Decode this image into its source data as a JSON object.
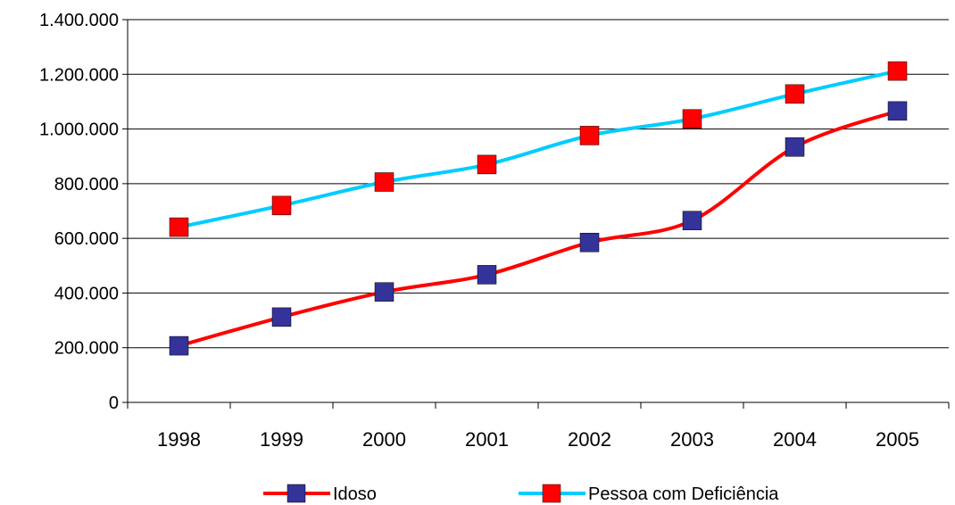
{
  "chart_data": {
    "type": "line",
    "categories": [
      "1998",
      "1999",
      "2000",
      "2001",
      "2002",
      "2003",
      "2004",
      "2005"
    ],
    "y_ticks": [
      "0",
      "200.000",
      "400.000",
      "600.000",
      "800.000",
      "1.000.000",
      "1.200.000",
      "1.400.000"
    ],
    "ylim": [
      0,
      1400000
    ],
    "grid": "horizontal",
    "legend_position": "bottom",
    "series": [
      {
        "name": "Idoso",
        "line_color": "#ff0000",
        "marker_color": "#333399",
        "values": [
          207000,
          312000,
          404000,
          467000,
          585000,
          665000,
          934000,
          1066000
        ]
      },
      {
        "name": "Pessoa com Deficiência",
        "line_color": "#00ccff",
        "marker_color": "#ff0000",
        "values": [
          641000,
          720000,
          806000,
          870000,
          976000,
          1037000,
          1128000,
          1212000
        ]
      }
    ]
  }
}
